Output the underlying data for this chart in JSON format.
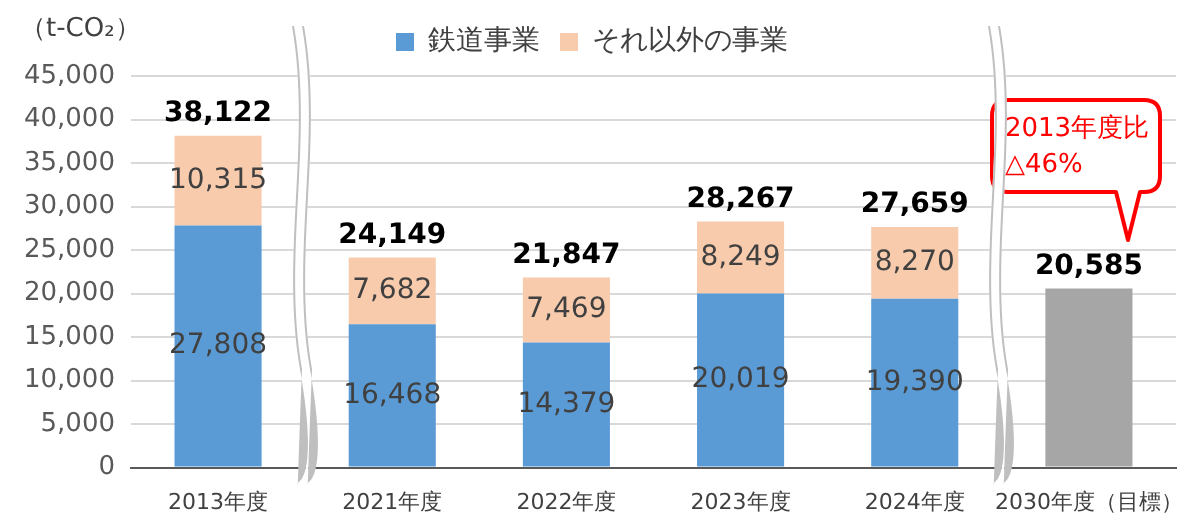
{
  "chart_data": {
    "type": "bar",
    "stacked": true,
    "ylabel": "（t-CO₂）",
    "categories": [
      "2013年度",
      "2021年度",
      "2022年度",
      "2023年度",
      "2024年度",
      "2030年度（目標）"
    ],
    "series": [
      {
        "name": "鉄道事業",
        "color": "#5b9bd5",
        "values": [
          27808,
          16468,
          14379,
          20019,
          19390,
          null
        ],
        "value_labels": [
          "27,808",
          "16,468",
          "14,379",
          "20,019",
          "19,390",
          null
        ]
      },
      {
        "name": "それ以外の事業",
        "color": "#f8cbad",
        "values": [
          10315,
          7682,
          7469,
          8249,
          8270,
          null
        ],
        "value_labels": [
          "10,315",
          "7,682",
          "7,469",
          "8,249",
          "8,270",
          null
        ]
      },
      {
        "color": "#a6a6a6",
        "values": [
          null,
          null,
          null,
          null,
          null,
          20585
        ],
        "value_labels": [
          null,
          null,
          null,
          null,
          null,
          "20,585"
        ]
      }
    ],
    "totals": [
      "38,122",
      "24,149",
      "21,847",
      "28,267",
      "27,659",
      null
    ],
    "ylim": [
      0,
      45000
    ],
    "yticks": [
      0,
      {
        "value": 5000,
        "label": "5,000"
      },
      {
        "value": 10000,
        "label": "10,000"
      },
      {
        "value": 15000,
        "label": "15,000"
      },
      {
        "value": 20000,
        "label": "20,000"
      },
      {
        "value": 25000,
        "label": "25,000"
      },
      {
        "value": 30000,
        "label": "30,000"
      },
      {
        "value": 35000,
        "label": "35,000"
      },
      {
        "value": 40000,
        "label": "40,000"
      },
      {
        "value": 45000,
        "label": "45,000"
      }
    ],
    "grid": "y",
    "legend": "top",
    "annotations": [
      "2013年度比\n△46%"
    ]
  }
}
